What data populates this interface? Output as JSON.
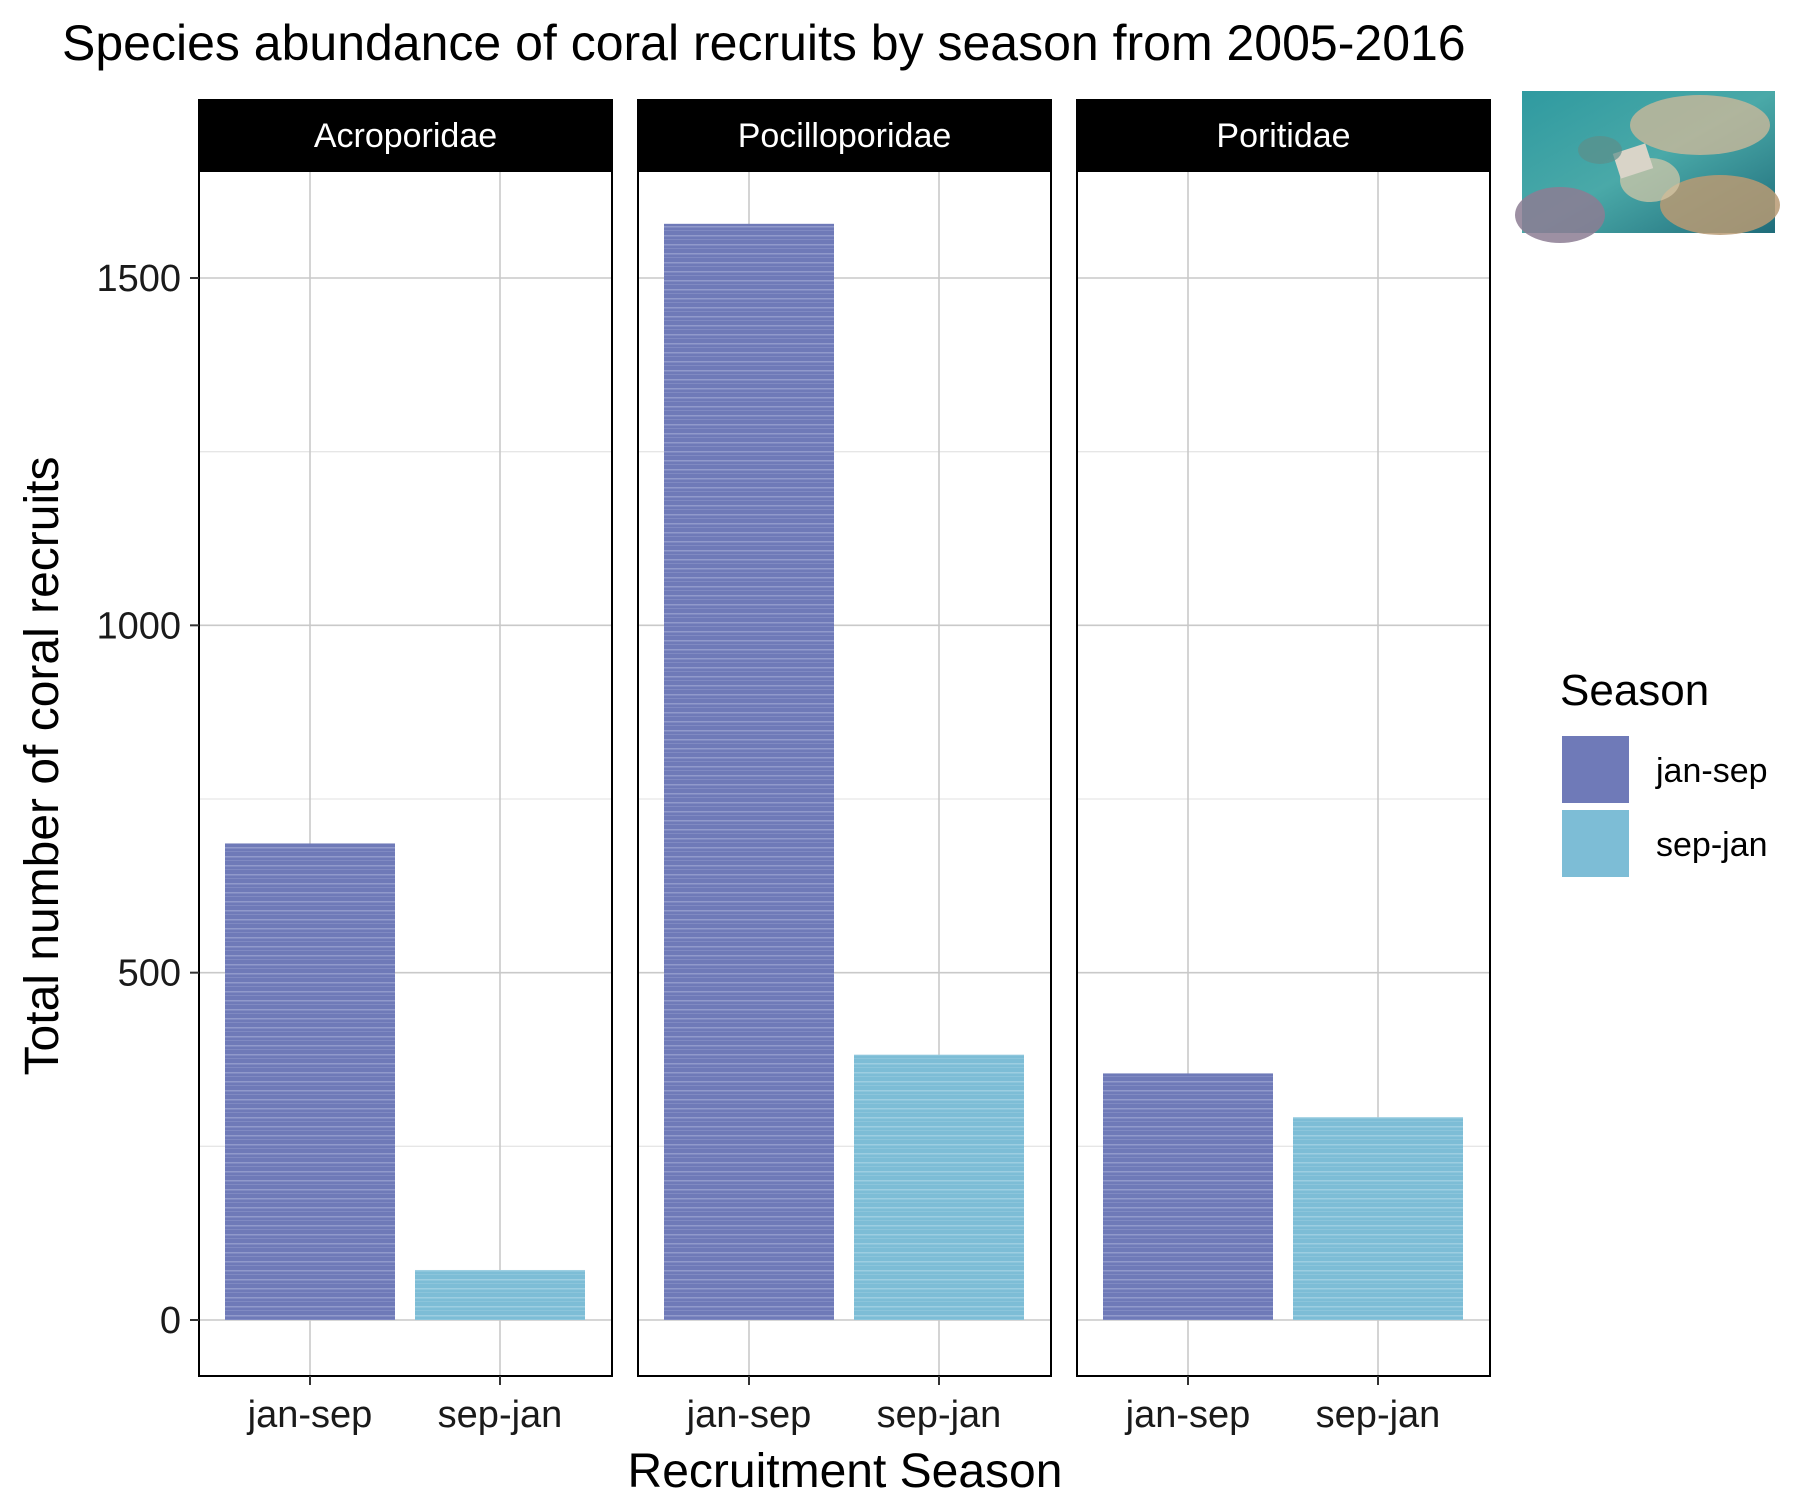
{
  "chart_data": {
    "type": "bar",
    "title": "Species abundance of coral recruits by season from 2005-2016",
    "xlabel": "Recruitment Season",
    "ylabel": "Total number of coral recruits",
    "ylim": [
      -77,
      1665
    ],
    "yticks": [
      0,
      500,
      1000,
      1500
    ],
    "grid": true,
    "categories": [
      "jan-sep",
      "sep-jan"
    ],
    "facets": [
      {
        "label": "Acroporidae",
        "values": [
          686,
          72
        ]
      },
      {
        "label": "Pocilloporidae",
        "values": [
          1578,
          382
        ]
      },
      {
        "label": "Poritidae",
        "values": [
          355,
          292
        ]
      }
    ],
    "legend": {
      "title": "Season",
      "position": "right",
      "entries": [
        {
          "label": "jan-sep",
          "color": "#6f7ab8"
        },
        {
          "label": "sep-jan",
          "color": "#7dbdd6"
        }
      ]
    },
    "strip_color": "#000000",
    "inset_image": "coral reef photo with recruitment tile"
  }
}
